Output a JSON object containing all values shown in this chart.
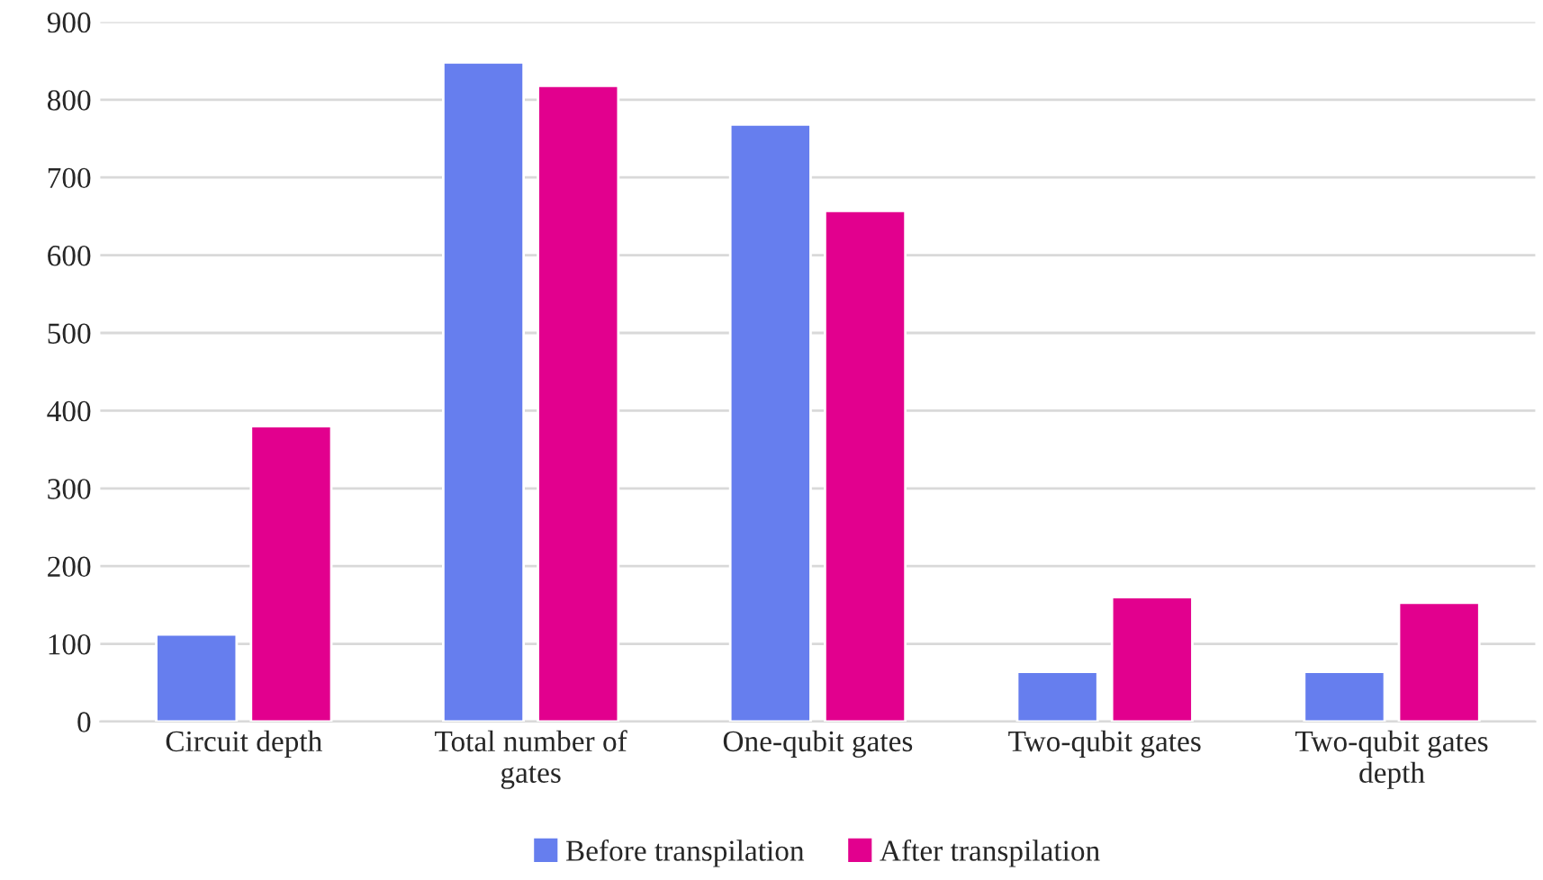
{
  "chart_data": {
    "type": "bar",
    "categories": [
      "Circuit depth",
      "Total number of gates",
      "One-qubit gates",
      "Two-qubit gates",
      "Two-qubit gates depth"
    ],
    "series": [
      {
        "name": "Before transpilation",
        "color": "#667eee",
        "values": [
          112,
          848,
          768,
          64,
          64
        ]
      },
      {
        "name": "After transpilation",
        "color": "#e2008e",
        "values": [
          380,
          818,
          657,
          160,
          153
        ]
      }
    ],
    "ylim": [
      0,
      900
    ],
    "yticks": [
      0,
      100,
      200,
      300,
      400,
      500,
      600,
      700,
      800,
      900
    ],
    "grid": "y",
    "legend": "bottom"
  }
}
